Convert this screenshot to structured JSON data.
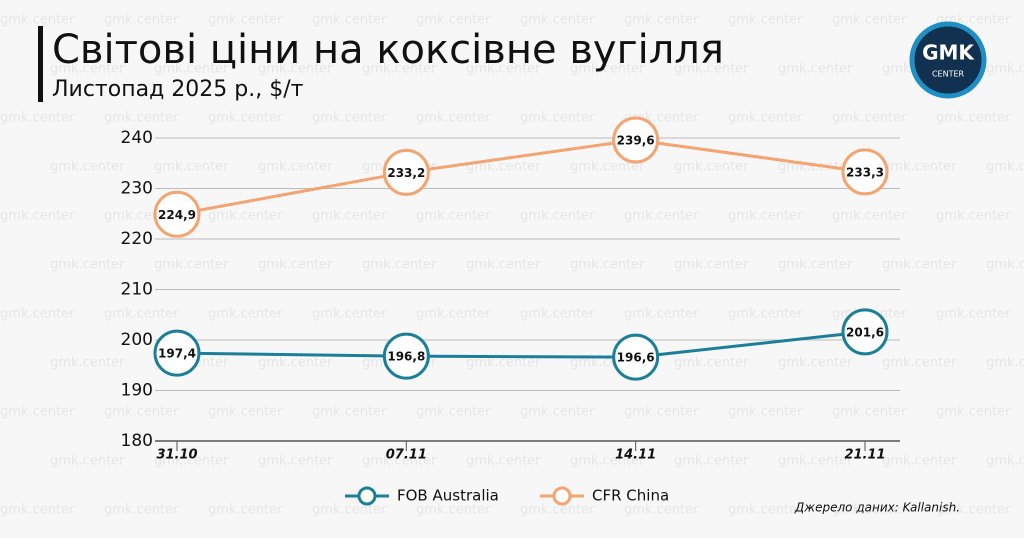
{
  "header": {
    "logo_top": "GMK",
    "logo_bottom": "CENTER",
    "watermark": "gmk.center"
  },
  "chart_data": {
    "type": "line",
    "title": "Світові ціни на коксівне вугілля",
    "subtitle": "Листопад 2025 р., $/т",
    "categories": [
      "31.10",
      "07.11",
      "14.11",
      "21.11"
    ],
    "series": [
      {
        "name": "FOB Australia",
        "color": "#1b7f99",
        "values": [
          197.4,
          196.8,
          196.6,
          201.6
        ],
        "value_labels": [
          "197,4",
          "196,8",
          "196,6",
          "201,6"
        ]
      },
      {
        "name": "CFR China",
        "color": "#f4a470",
        "values": [
          224.9,
          233.2,
          239.6,
          233.3
        ],
        "value_labels": [
          "224,9",
          "233,2",
          "239,6",
          "233,3"
        ]
      }
    ],
    "ylim": [
      180,
      240
    ],
    "yticks": [
      180,
      190,
      200,
      210,
      220,
      230,
      240
    ],
    "grid": true,
    "legend": "bottom",
    "source": "Джерело даних: Kallanish."
  }
}
